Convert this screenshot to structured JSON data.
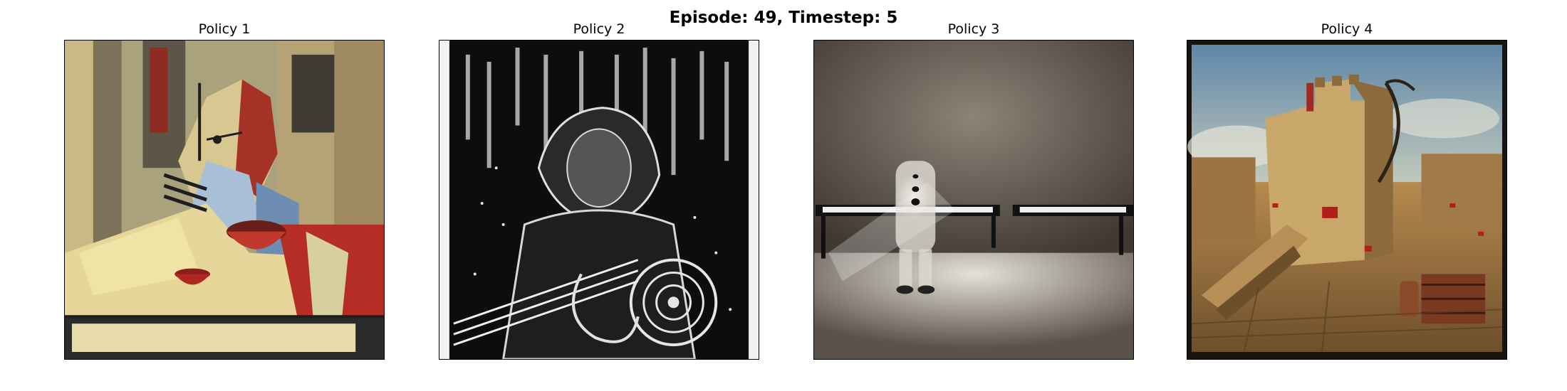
{
  "figure": {
    "suptitle": "Episode: 49, Timestep: 5",
    "panels": [
      {
        "title": "Policy 1",
        "image": "cubist-portrait-with-bowl"
      },
      {
        "title": "Policy 2",
        "image": "black-white-figure-with-guitar"
      },
      {
        "title": "Policy 3",
        "image": "ghostly-figure-with-piano"
      },
      {
        "title": "Policy 4",
        "image": "ruined-castle-tower-landscape"
      }
    ]
  }
}
